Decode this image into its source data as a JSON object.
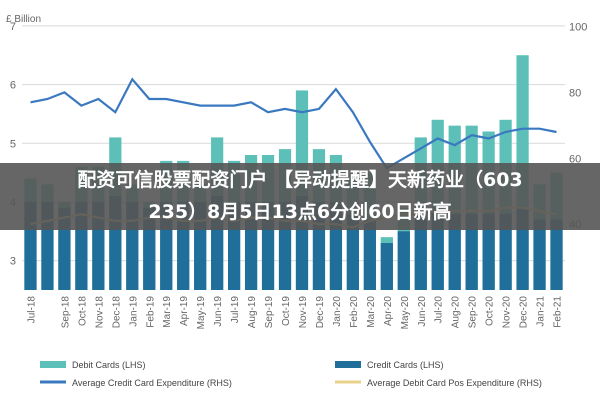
{
  "chart_data": {
    "type": "bar",
    "y_left_unit": "£ Billion",
    "y_left_ticks": [
      "3",
      "4",
      "5",
      "6",
      "7"
    ],
    "y_right_ticks": [
      "40",
      "60",
      "80",
      "100"
    ],
    "ylim_left": [
      2.5,
      7.1
    ],
    "ylim_right": [
      20,
      102
    ],
    "categories": [
      "Jul-18",
      "Aug-18",
      "Sep-18",
      "Oct-18",
      "Nov-18",
      "Dec-18",
      "Jan-19",
      "Feb-19",
      "Mar-19",
      "Apr-19",
      "May-19",
      "Jun-19",
      "Jul-19",
      "Aug-19",
      "Sep-19",
      "Oct-19",
      "Nov-19",
      "Dec-19",
      "Jan-20",
      "Feb-20",
      "Mar-20",
      "Apr-20",
      "May-20",
      "Jun-20",
      "Jul-20",
      "Aug-20",
      "Sep-20",
      "Oct-20",
      "Nov-20",
      "Dec-20",
      "Jan-21",
      "Feb-21"
    ],
    "x_tick_labels": [
      "Jul-18",
      "Sep-18",
      "Oct-18",
      "Nov-18",
      "Dec-18",
      "Jan-19",
      "Feb-19",
      "Mar-19",
      "Apr-19",
      "May-19",
      "Jun-19",
      "Jul-19",
      "Aug-19",
      "Sep-19",
      "Oct-19",
      "Nov-19",
      "Dec-19",
      "Jan-20",
      "Feb-20",
      "Mar-20",
      "Apr-20",
      "May-20",
      "Jun-20",
      "Jul-20",
      "Aug-20",
      "Sep-20",
      "Oct-20",
      "Nov-20",
      "Dec-20",
      "Jan-21",
      "Feb-21"
    ],
    "series": [
      {
        "name": "Debit Cards (LHS)",
        "axis": "left",
        "kind": "bar",
        "color": "#5cc0b8",
        "values": [
          4.4,
          4.3,
          4.0,
          4.6,
          4.6,
          5.1,
          4.3,
          4.0,
          4.7,
          4.7,
          4.3,
          5.1,
          4.7,
          4.8,
          4.8,
          4.9,
          5.9,
          4.9,
          4.8,
          4.4,
          4.5,
          3.4,
          3.9,
          5.1,
          5.4,
          5.3,
          5.3,
          5.2,
          5.4,
          6.5,
          4.3,
          4.5
        ]
      },
      {
        "name": "Credit Cards (LHS)",
        "axis": "left",
        "kind": "bar",
        "color": "#1f6f9a",
        "values": [
          1.5,
          1.5,
          1.4,
          1.5,
          1.5,
          1.6,
          1.5,
          1.4,
          1.5,
          1.5,
          1.5,
          1.6,
          1.5,
          1.5,
          1.5,
          1.5,
          1.6,
          1.5,
          1.5,
          1.3,
          1.2,
          0.8,
          1.0,
          1.2,
          1.3,
          1.3,
          1.3,
          1.3,
          1.3,
          1.4,
          1.2,
          1.2
        ]
      },
      {
        "name": "Average Credit Card Expenditure (RHS)",
        "axis": "right",
        "kind": "line",
        "color": "#3a78c0",
        "values": [
          77,
          78,
          80,
          76,
          78,
          74,
          84,
          78,
          78,
          77,
          76,
          76,
          76,
          77,
          74,
          75,
          74,
          75,
          81,
          74,
          65,
          57,
          60,
          63,
          66,
          64,
          67,
          66,
          68,
          69,
          69,
          68
        ]
      },
      {
        "name": "Average Debit Card Pos Expenditure (RHS)",
        "axis": "right",
        "kind": "line",
        "color": "#e8d28a",
        "values": [
          40,
          41,
          42,
          43,
          42,
          41,
          41,
          42,
          42,
          41,
          41,
          42,
          41,
          42,
          42,
          41,
          41,
          40,
          40,
          39,
          41,
          42,
          43,
          43,
          44,
          44,
          44,
          44,
          45,
          45,
          44,
          43
        ]
      }
    ]
  },
  "banner": {
    "line1": "配资可信股票配资门户 【异动提醒】天新药业（603",
    "line2": "235）8月5日13点6分创60日新高"
  },
  "colors": {
    "banner_bg": "#555555",
    "grid": "#d9d9d9",
    "tick_text": "#666666"
  }
}
